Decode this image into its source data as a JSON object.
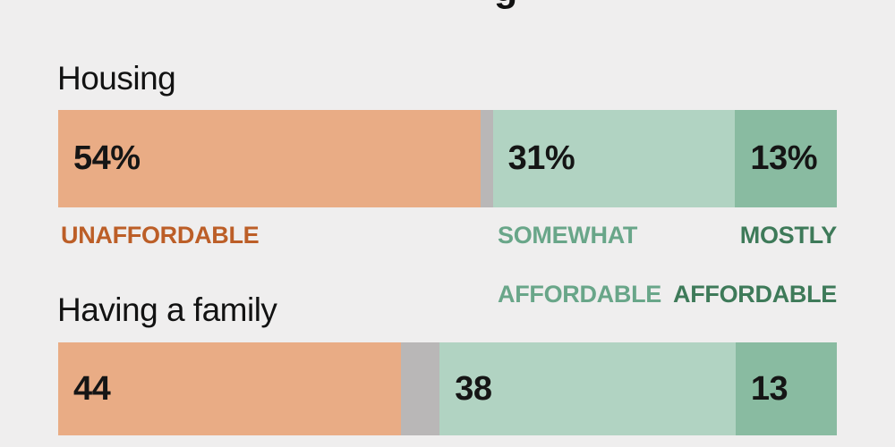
{
  "page": {
    "background": "#efeeee",
    "title_fragment": "g"
  },
  "legend": {
    "unaffordable": "UNAFFORDABLE",
    "somewhat_line1": "SOMEWHAT",
    "somewhat_line2": "AFFORDABLE",
    "mostly_line1": "MOSTLY",
    "mostly_line2": "AFFORDABLE",
    "unaffordable_color": "#bc5e27",
    "somewhat_color": "#69a689",
    "mostly_color": "#3e7a59"
  },
  "chart_data": {
    "type": "bar",
    "subtype": "stacked-horizontal",
    "categories": [
      "Housing",
      "Having a family"
    ],
    "xlim": [
      0,
      100
    ],
    "grid": false,
    "legend_position": "below-first-bar",
    "series": [
      {
        "key": "unaffordable",
        "name": "Unaffordable",
        "values": [
          54,
          44
        ],
        "labels": [
          "54%",
          "44"
        ],
        "color": "#e9ac85"
      },
      {
        "key": "no-answer",
        "name": "Unlabeled gray gap",
        "values": [
          1.6,
          5
        ],
        "labels": [
          "",
          ""
        ],
        "color": "#b9b7b7"
      },
      {
        "key": "somewhat-affordable",
        "name": "Somewhat affordable",
        "values": [
          31,
          38
        ],
        "labels": [
          "31%",
          "38"
        ],
        "color": "#b1d3c2"
      },
      {
        "key": "mostly-affordable",
        "name": "Mostly affordable",
        "values": [
          13,
          13
        ],
        "labels": [
          "13%",
          "13"
        ],
        "color": "#89bba1"
      }
    ],
    "value_text_color": "#151515"
  }
}
